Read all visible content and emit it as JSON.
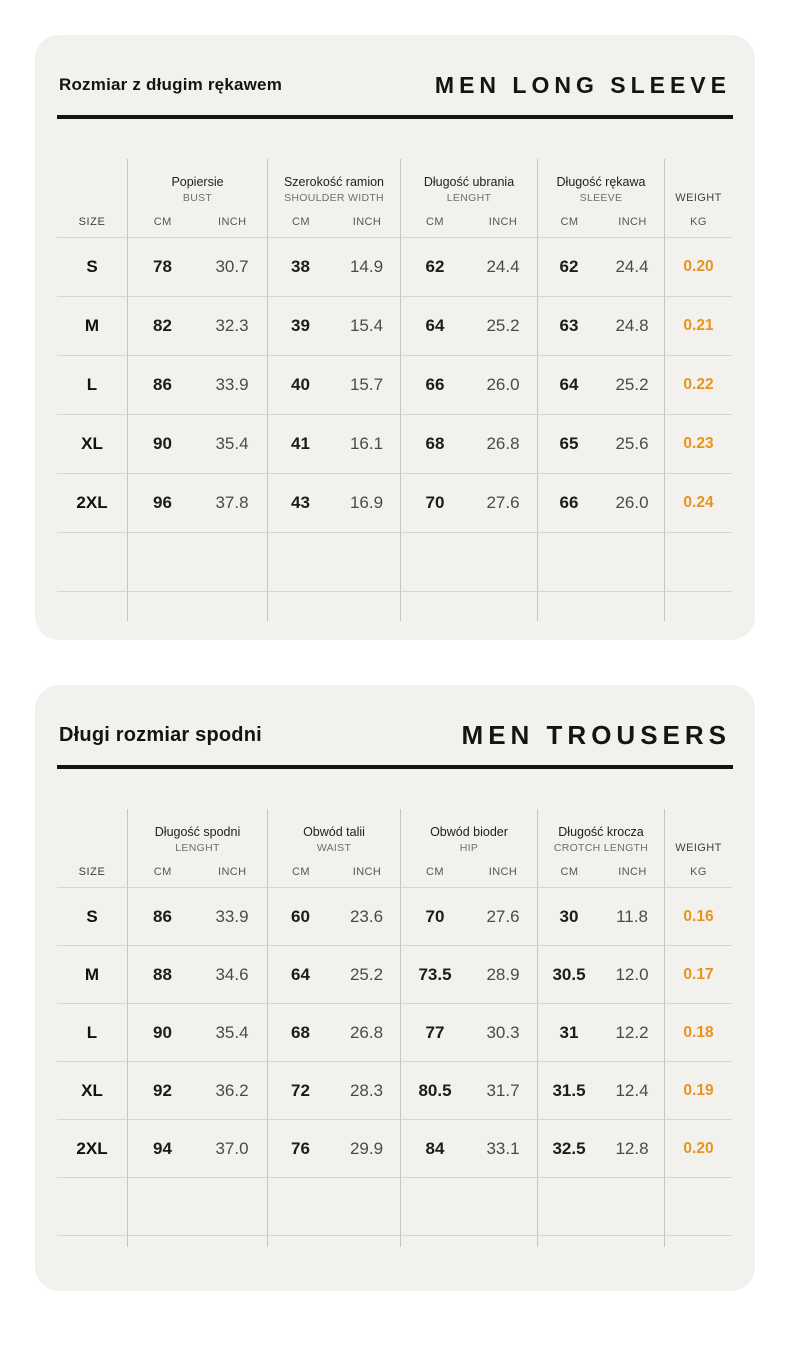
{
  "page": {
    "background": "#ffffff",
    "card_background": "#f2f1ee",
    "accent_orange": "#e8941c"
  },
  "unit_labels": {
    "cm": "CM",
    "inch": "INCH"
  },
  "tables": [
    {
      "title_pl": "Rozmiar z długim rękawem",
      "title_en": "MEN LONG SLEEVE",
      "size_label": "SIZE",
      "weight_label": "WEIGHT",
      "weight_unit": "KG",
      "columns": [
        {
          "pl": "Popiersie",
          "en": "BUST"
        },
        {
          "pl": "Szerokość ramion",
          "en": "SHOULDER WIDTH"
        },
        {
          "pl": "Długość ubrania",
          "en": "LENGHT"
        },
        {
          "pl": "Długość rękawa",
          "en": "SLEEVE"
        }
      ],
      "rows": [
        {
          "size": "S",
          "values": [
            "78",
            "30.7",
            "38",
            "14.9",
            "62",
            "24.4",
            "62",
            "24.4"
          ],
          "weight": "0.20"
        },
        {
          "size": "M",
          "values": [
            "82",
            "32.3",
            "39",
            "15.4",
            "64",
            "25.2",
            "63",
            "24.8"
          ],
          "weight": "0.21"
        },
        {
          "size": "L",
          "values": [
            "86",
            "33.9",
            "40",
            "15.7",
            "66",
            "26.0",
            "64",
            "25.2"
          ],
          "weight": "0.22"
        },
        {
          "size": "XL",
          "values": [
            "90",
            "35.4",
            "41",
            "16.1",
            "68",
            "26.8",
            "65",
            "25.6"
          ],
          "weight": "0.23"
        },
        {
          "size": "2XL",
          "values": [
            "96",
            "37.8",
            "43",
            "16.9",
            "70",
            "27.6",
            "66",
            "26.0"
          ],
          "weight": "0.24"
        }
      ],
      "empty_rows": 2
    },
    {
      "title_pl": "Długi rozmiar spodni",
      "title_en": "MEN TROUSERS",
      "size_label": "SIZE",
      "weight_label": "WEIGHT",
      "weight_unit": "KG",
      "columns": [
        {
          "pl": "Długość spodni",
          "en": "LENGHT"
        },
        {
          "pl": "Obwód talii",
          "en": "WAIST"
        },
        {
          "pl": "Obwód bioder",
          "en": "HIP"
        },
        {
          "pl": "Długość krocza",
          "en": "CROTCH LENGTH"
        }
      ],
      "rows": [
        {
          "size": "S",
          "values": [
            "86",
            "33.9",
            "60",
            "23.6",
            "70",
            "27.6",
            "30",
            "11.8"
          ],
          "weight": "0.16"
        },
        {
          "size": "M",
          "values": [
            "88",
            "34.6",
            "64",
            "25.2",
            "73.5",
            "28.9",
            "30.5",
            "12.0"
          ],
          "weight": "0.17"
        },
        {
          "size": "L",
          "values": [
            "90",
            "35.4",
            "68",
            "26.8",
            "77",
            "30.3",
            "31",
            "12.2"
          ],
          "weight": "0.18"
        },
        {
          "size": "XL",
          "values": [
            "92",
            "36.2",
            "72",
            "28.3",
            "80.5",
            "31.7",
            "31.5",
            "12.4"
          ],
          "weight": "0.19"
        },
        {
          "size": "2XL",
          "values": [
            "94",
            "37.0",
            "76",
            "29.9",
            "84",
            "33.1",
            "32.5",
            "12.8"
          ],
          "weight": "0.20"
        }
      ],
      "empty_rows": 2
    }
  ]
}
